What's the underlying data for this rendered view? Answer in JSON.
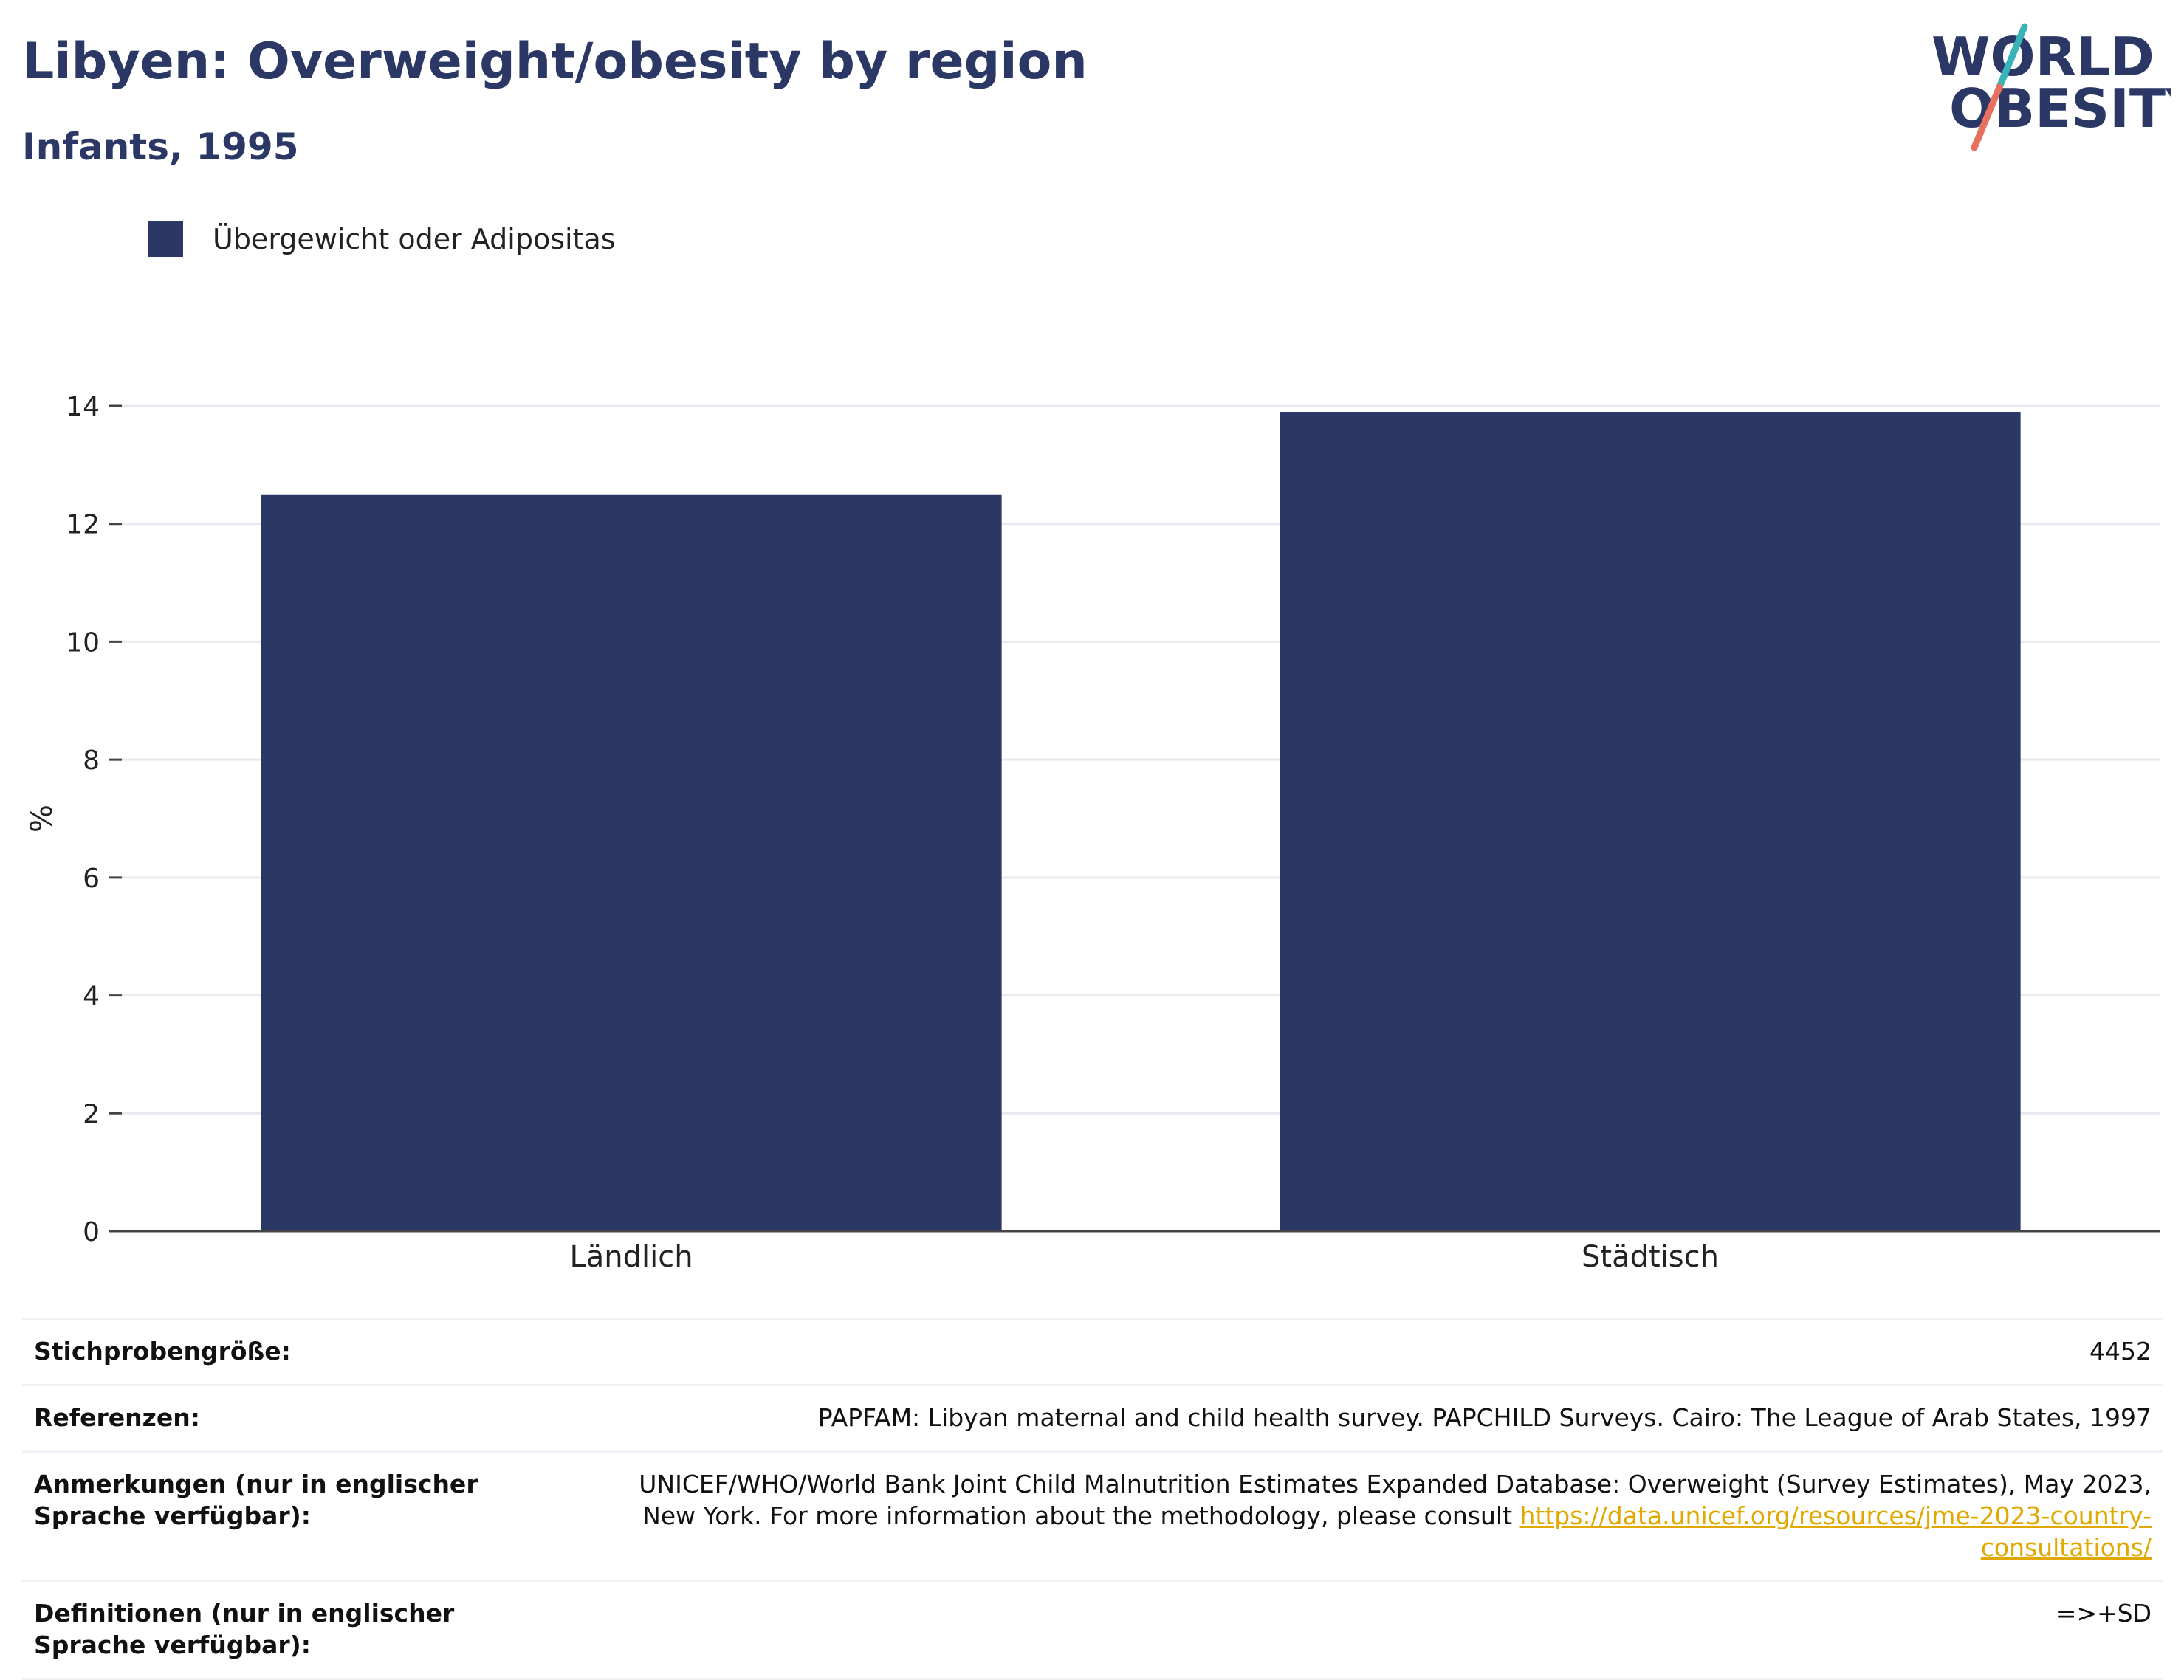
{
  "header": {
    "title": "Libyen: Overweight/obesity by region",
    "subtitle": "Infants, 1995"
  },
  "logo": {
    "line1": "WORLD",
    "line2": "OBESITY",
    "colors": {
      "text": "#2b3765",
      "slash_top": "#3ab3b8",
      "slash_bottom": "#e8705f"
    }
  },
  "legend": {
    "label": "Übergewicht oder Adipositas",
    "color": "#2b3765"
  },
  "chart_data": {
    "type": "bar",
    "categories": [
      "Ländlich",
      "Städtisch"
    ],
    "series": [
      {
        "name": "Übergewicht oder Adipositas",
        "values": [
          12.5,
          13.9
        ],
        "color": "#2b3765"
      }
    ],
    "ylabel": "%",
    "xlabel": "",
    "ylim": [
      0,
      14
    ],
    "yticks": [
      0,
      2,
      4,
      6,
      8,
      10,
      12,
      14
    ],
    "grid": true,
    "legend_position": "top-left"
  },
  "info": {
    "rows": [
      {
        "label": "Stichprobengröße:",
        "value": "4452"
      },
      {
        "label": "Referenzen:",
        "value": "PAPFAM: Libyan maternal and child health survey. PAPCHILD Surveys. Cairo: The League of Arab States, 1997"
      },
      {
        "label": "Anmerkungen (nur in englischer Sprache verfügbar):",
        "value": "UNICEF/WHO/World Bank Joint Child Malnutrition Estimates Expanded Database: Overweight (Survey Estimates), May 2023, New York. For more information about the methodology, please consult ",
        "link": "https://data.unicef.org/resources/jme-2023-country-consultations/"
      },
      {
        "label": "Definitionen (nur in englischer Sprache verfügbar):",
        "value": "=>+SD"
      }
    ]
  }
}
